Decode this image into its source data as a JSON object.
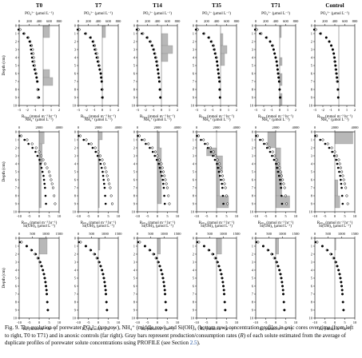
{
  "columns": [
    "T0",
    "T7",
    "T14",
    "T35",
    "T71",
    "Control"
  ],
  "depth_label": "Depth (cm)",
  "rows": [
    {
      "top_label": "PO₄³⁻ (μmol L⁻¹)",
      "conc_ticks": [
        "0",
        "200",
        "400",
        "600",
        "800"
      ],
      "conc_max": 800,
      "rate_ticks": [
        "-3",
        "-2",
        "-1",
        "0",
        "1",
        "2"
      ],
      "rate_min": -3,
      "rate_max": 2,
      "bottom_label": "Rₚ₀₄ (mmol m⁻³ hr⁻¹)"
    },
    {
      "top_label": "NH₄⁺ (μmol L⁻¹)",
      "conc_ticks": [
        "0",
        "2000",
        "4000"
      ],
      "conc_max": 4000,
      "rate_ticks": [
        "-10",
        "-5",
        "0",
        "5",
        "10"
      ],
      "rate_min": -10,
      "rate_max": 10,
      "bottom_label": "Rₙₕ₄ (mmol m⁻³ hr⁻¹)"
    },
    {
      "top_label": "Si(OH)₄ (μmol L⁻¹)",
      "conc_ticks": [
        "0",
        "500",
        "1000",
        "1500"
      ],
      "conc_max": 1500,
      "rate_ticks": [
        "-10",
        "-5",
        "0",
        "5",
        "10"
      ],
      "rate_min": -10,
      "rate_max": 10,
      "bottom_label": "Rₛᵢ (mmol m⁻³ hr⁻¹)"
    }
  ],
  "depth_ticks": [
    "0",
    "1",
    "2",
    "3",
    "4",
    "5",
    "6",
    "7",
    "8",
    "9",
    "10"
  ],
  "chart_data": {
    "type": "scatter",
    "note_axes": "Depth (cm) on y-axis (0 top to 10 bottom); concentration on top x-axis; production/consumption rate R on bottom x-axis",
    "depths": [
      0.5,
      1,
      1.5,
      2,
      2.5,
      3,
      3.5,
      4,
      4.5,
      5,
      5.5,
      6,
      6.5,
      7,
      8,
      9
    ],
    "po4_filled": {
      "T0": [
        0,
        100,
        180,
        220,
        240,
        250,
        260,
        270,
        280,
        300,
        320,
        340,
        360,
        380,
        400,
        410
      ],
      "T7": [
        0,
        150,
        250,
        300,
        320,
        340,
        360,
        380,
        400,
        420,
        440,
        460,
        470,
        480,
        480,
        490
      ],
      "T14": [
        0,
        100,
        200,
        260,
        300,
        330,
        350,
        370,
        390,
        400,
        420,
        430,
        440,
        450,
        460,
        470
      ],
      "T35": [
        0,
        150,
        250,
        300,
        340,
        360,
        380,
        400,
        420,
        430,
        440,
        450,
        460,
        470,
        480,
        480
      ],
      "T71": [
        0,
        100,
        220,
        300,
        340,
        370,
        390,
        410,
        430,
        440,
        450,
        460,
        470,
        480,
        490,
        500
      ],
      "Control": [
        0,
        120,
        240,
        300,
        340,
        370,
        390,
        410,
        420,
        430,
        440,
        450,
        460,
        470,
        480,
        480
      ]
    },
    "po4_open": {
      "T0": [
        0,
        80,
        160,
        200,
        230,
        250,
        260,
        270,
        280,
        290,
        300,
        320,
        330,
        340,
        350,
        360
      ],
      "T7": [
        0,
        130,
        230,
        280,
        310,
        330,
        350,
        370,
        380,
        400,
        410,
        430,
        440,
        450,
        460,
        470
      ],
      "T14": [
        0,
        90,
        180,
        240,
        280,
        310,
        330,
        350,
        370,
        380,
        390,
        400,
        410,
        420,
        430,
        440
      ],
      "T35": [
        0,
        130,
        230,
        280,
        320,
        340,
        360,
        380,
        390,
        400,
        410,
        420,
        430,
        440,
        440,
        450
      ],
      "T71": [
        0,
        90,
        200,
        270,
        320,
        340,
        360,
        380,
        400,
        410,
        420,
        430,
        440,
        450,
        460,
        470
      ],
      "Control": [
        0,
        100,
        210,
        270,
        310,
        340,
        360,
        370,
        380,
        390,
        400,
        410,
        420,
        430,
        440,
        450
      ]
    },
    "nh4_filled": {
      "T0": [
        100,
        600,
        1000,
        1400,
        1700,
        1900,
        2100,
        2200,
        2300,
        2400,
        2500,
        2550,
        2600,
        2650,
        2700,
        2750
      ],
      "T7": [
        100,
        600,
        1100,
        1500,
        1800,
        2000,
        2200,
        2300,
        2400,
        2500,
        2550,
        2600,
        2650,
        2700,
        2750,
        2800
      ],
      "T14": [
        100,
        500,
        900,
        1300,
        1600,
        1800,
        2000,
        2200,
        2300,
        2400,
        2500,
        2600,
        2650,
        2700,
        2750,
        2800
      ],
      "T35": [
        100,
        500,
        900,
        1200,
        1500,
        1700,
        1900,
        2100,
        2200,
        2300,
        2400,
        2500,
        2600,
        2650,
        2700,
        2750
      ],
      "T71": [
        100,
        500,
        900,
        1200,
        1500,
        1700,
        1900,
        2100,
        2200,
        2300,
        2400,
        2500,
        2550,
        2600,
        2650,
        2700
      ],
      "Control": [
        100,
        600,
        1100,
        1500,
        1800,
        2000,
        2200,
        2300,
        2400,
        2500,
        2600,
        2650,
        2700,
        2750,
        2800,
        2850
      ]
    },
    "nh4_open": {
      "T0": [
        100,
        700,
        1200,
        1600,
        1900,
        2100,
        2300,
        2500,
        2700,
        2900,
        3000,
        3100,
        3200,
        3300,
        3400,
        3500
      ],
      "T7": [
        100,
        700,
        1200,
        1600,
        1900,
        2100,
        2300,
        2500,
        2600,
        2700,
        2800,
        2900,
        3000,
        3100,
        3200,
        3300
      ],
      "T14": [
        100,
        600,
        1000,
        1400,
        1700,
        1900,
        2100,
        2300,
        2400,
        2500,
        2600,
        2700,
        2800,
        2900,
        3000,
        3100
      ],
      "T35": [
        100,
        600,
        1000,
        1300,
        1600,
        1800,
        2000,
        2200,
        2300,
        2400,
        2500,
        2600,
        2700,
        2800,
        2900,
        3000
      ],
      "T71": [
        100,
        600,
        1000,
        1300,
        1600,
        1800,
        2000,
        2200,
        2300,
        2400,
        2500,
        2600,
        2700,
        2800,
        2900,
        3000
      ],
      "Control": [
        100,
        700,
        1200,
        1600,
        1900,
        2100,
        2300,
        2400,
        2500,
        2600,
        2700,
        2800,
        2900,
        3000,
        3100,
        3200
      ]
    },
    "si_filled": {
      "T0": [
        50,
        300,
        500,
        650,
        750,
        820,
        870,
        920,
        960,
        990,
        1010,
        1030,
        1050,
        1060,
        1080,
        1100
      ],
      "T7": [
        50,
        300,
        500,
        650,
        750,
        820,
        870,
        920,
        960,
        990,
        1010,
        1030,
        1050,
        1060,
        1080,
        1100
      ],
      "T14": [
        50,
        300,
        500,
        650,
        750,
        820,
        870,
        920,
        960,
        990,
        1010,
        1030,
        1050,
        1060,
        1080,
        1100
      ],
      "T35": [
        50,
        300,
        500,
        650,
        750,
        820,
        870,
        920,
        960,
        990,
        1010,
        1030,
        1050,
        1060,
        1080,
        1100
      ],
      "T71": [
        50,
        300,
        500,
        650,
        750,
        820,
        870,
        920,
        960,
        990,
        1010,
        1030,
        1050,
        1060,
        1080,
        1100
      ],
      "Control": [
        50,
        300,
        500,
        650,
        750,
        820,
        870,
        920,
        960,
        990,
        1010,
        1030,
        1050,
        1060,
        1080,
        1100
      ]
    },
    "si_open": {
      "T0": [
        50,
        250,
        420,
        560,
        660,
        740,
        800,
        850,
        890,
        920,
        950,
        970,
        990,
        1000,
        1020,
        1040
      ],
      "T7": [
        50,
        250,
        420,
        560,
        660,
        740,
        800,
        850,
        890,
        920,
        950,
        970,
        990,
        1000,
        1020,
        1040
      ],
      "T14": [
        50,
        250,
        420,
        560,
        660,
        740,
        800,
        850,
        890,
        920,
        950,
        970,
        990,
        1000,
        1020,
        1040
      ],
      "T35": [
        50,
        250,
        420,
        560,
        660,
        740,
        800,
        850,
        890,
        920,
        950,
        970,
        990,
        1000,
        1020,
        1040
      ],
      "T71": [
        50,
        250,
        420,
        560,
        660,
        740,
        800,
        850,
        890,
        920,
        950,
        970,
        990,
        1000,
        1020,
        1040
      ],
      "Control": [
        50,
        250,
        420,
        560,
        660,
        740,
        800,
        850,
        890,
        920,
        950,
        970,
        990,
        1000,
        1020,
        1040
      ]
    },
    "rate_bars": {
      "po4": {
        "T0": [
          {
            "d0": 0,
            "d1": 1.5,
            "r": 0.8
          },
          {
            "d0": 5.5,
            "d1": 6.5,
            "r": 0.8
          },
          {
            "d0": 6.5,
            "d1": 7.5,
            "r": 1.2
          }
        ],
        "T7": [
          {
            "d0": 0,
            "d1": 1.5,
            "r": 0.4
          }
        ],
        "T14": [
          {
            "d0": 1,
            "d1": 2.5,
            "r": 0.8
          },
          {
            "d0": 2.5,
            "d1": 3.5,
            "r": 1.4
          },
          {
            "d0": 3.5,
            "d1": 4.5,
            "r": 0.8
          }
        ],
        "T35": [
          {
            "d0": 1,
            "d1": 2.5,
            "r": 0.3
          },
          {
            "d0": 2.5,
            "d1": 3.5,
            "r": 0.8
          },
          {
            "d0": 3.5,
            "d1": 5,
            "r": 0.5
          }
        ],
        "T71": [
          {
            "d0": 0,
            "d1": 1.5,
            "r": 0.2
          },
          {
            "d0": 4,
            "d1": 5,
            "r": 0.3
          },
          {
            "d0": 6,
            "d1": 7.5,
            "r": 0.3
          },
          {
            "d0": 8.5,
            "d1": 10,
            "r": 0.3
          }
        ],
        "Control": []
      },
      "nh4": {
        "T0": [
          {
            "d0": 0,
            "d1": 1.5,
            "r": 2.5
          },
          {
            "d0": 1.5,
            "d1": 4,
            "r": 1.5
          },
          {
            "d0": 4,
            "d1": 9.5,
            "r": 1.0
          }
        ],
        "T7": [
          {
            "d0": 0,
            "d1": 1,
            "r": 2.0
          },
          {
            "d0": 1,
            "d1": 9.5,
            "r": 0.5
          }
        ],
        "T14": [
          {
            "d0": 0,
            "d1": 2,
            "r": 1.0
          },
          {
            "d0": 2,
            "d1": 9,
            "r": 2.0
          }
        ],
        "T35": [
          {
            "d0": 2,
            "d1": 3,
            "r": -5.0
          },
          {
            "d0": 3,
            "d1": 5,
            "r": 3.0
          },
          {
            "d0": 5,
            "d1": 8,
            "r": 1.5
          },
          {
            "d0": 8,
            "d1": 9.5,
            "r": 6.0
          }
        ],
        "T71": [
          {
            "d0": 0,
            "d1": 2,
            "r": -4.0
          },
          {
            "d0": 2,
            "d1": 5,
            "r": 2.5
          },
          {
            "d0": 5,
            "d1": 8,
            "r": 3.0
          },
          {
            "d0": 8,
            "d1": 9.5,
            "r": 7.0
          }
        ],
        "Control": [
          {
            "d0": 0,
            "d1": 1.5,
            "r": 9.0
          },
          {
            "d0": 6,
            "d1": 8,
            "r": 1.5
          },
          {
            "d0": 8,
            "d1": 9.5,
            "r": 2.5
          }
        ]
      },
      "si": {
        "T0": [
          {
            "d0": 0,
            "d1": 2,
            "r": 4.0
          }
        ],
        "T7": [
          {
            "d0": 0,
            "d1": 1.5,
            "r": 0.8
          }
        ],
        "T14": [
          {
            "d0": 0,
            "d1": 2,
            "r": 1.5
          }
        ],
        "T35": [
          {
            "d0": 0,
            "d1": 2,
            "r": 2.5
          }
        ],
        "T71": [
          {
            "d0": 0,
            "d1": 2,
            "r": 1.5
          }
        ],
        "Control": [
          {
            "d0": 0,
            "d1": 1.5,
            "r": 0.5
          }
        ]
      }
    }
  },
  "caption": {
    "prefix": "Fig. 9. The evolution of porewater PO₄³⁻ (top row), NH₄⁺ (middle row), and Si(OH)₄ (bottom row) concentration profiles in oxic cores over time (from left to right, T0 to T71) and in anoxic controls (far right). Gray bars represent production/consumption rates (",
    "r_symbol": "R",
    "middle": ") of each solute estimated from the average of duplicate profiles of porewater solute concentrations using PROFILE (see Section ",
    "section": "2.5",
    "suffix": ")."
  },
  "colors": {
    "bar_fill": "#b8b8b8",
    "axis": "#000000",
    "marker": "#000000",
    "section_link": "#1a4fa0"
  }
}
